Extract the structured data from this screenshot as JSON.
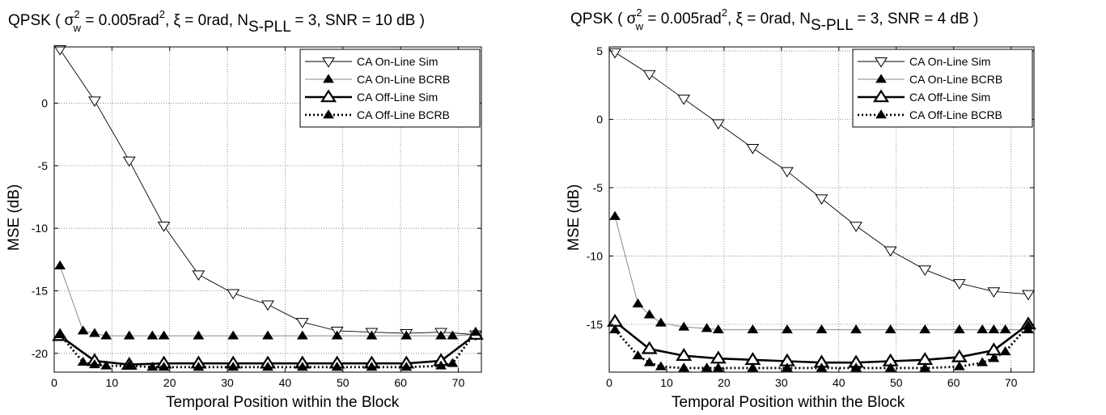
{
  "chart_data": [
    {
      "type": "line",
      "title": {
        "pre": "QPSK ( σ",
        "sup1": "2",
        "sub1": "w",
        "mid": " = 0.005rad",
        "sup2": "2",
        "mid2": ", ξ = 0rad, N",
        "sub2": "S-PLL",
        "post": " = 3, SNR = 10 dB )"
      },
      "xlabel": "Temporal Position within the Block",
      "ylabel": "MSE (dB)",
      "xlim": [
        0,
        74
      ],
      "ylim": [
        -21.5,
        4.5
      ],
      "xticks": [
        0,
        10,
        20,
        30,
        40,
        50,
        60,
        70
      ],
      "yticks": [
        0,
        -5,
        -10,
        -15,
        -20
      ],
      "grid": true,
      "legend_position": "top-right",
      "x": [
        1,
        5,
        7,
        9,
        13,
        17,
        19,
        25,
        31,
        37,
        43,
        49,
        55,
        61,
        67,
        69,
        73
      ],
      "series": [
        {
          "name": "CA On-Line Sim",
          "marker": "triangle-down-open",
          "line": "thin",
          "values": [
            4.3,
            null,
            0.2,
            null,
            -4.6,
            null,
            -9.8,
            -13.7,
            -15.2,
            -16.1,
            -17.5,
            -18.2,
            -18.3,
            -18.4,
            -18.3,
            null,
            -18.5
          ]
        },
        {
          "name": "CA On-Line BCRB",
          "marker": "triangle-up-filled",
          "line": "thin-gray",
          "values": [
            -13.0,
            -18.2,
            -18.4,
            -18.6,
            -18.6,
            -18.6,
            -18.6,
            -18.6,
            -18.6,
            -18.6,
            -18.6,
            -18.6,
            -18.6,
            -18.6,
            -18.6,
            -18.6,
            -18.5
          ]
        },
        {
          "name": "CA Off-Line Sim",
          "marker": "triangle-up-open",
          "line": "thick",
          "values": [
            -18.6,
            null,
            -20.6,
            null,
            -20.9,
            null,
            -20.8,
            -20.8,
            -20.8,
            -20.8,
            -20.8,
            -20.8,
            -20.8,
            -20.8,
            -20.6,
            null,
            -18.5
          ]
        },
        {
          "name": "CA Off-Line BCRB",
          "marker": "triangle-up-filled",
          "line": "dotted",
          "values": [
            -18.5,
            -20.7,
            -20.9,
            -21.0,
            -21.0,
            -21.1,
            -21.1,
            -21.1,
            -21.1,
            -21.1,
            -21.1,
            -21.1,
            -21.1,
            -21.1,
            -21.0,
            -20.8,
            -18.3
          ]
        }
      ]
    },
    {
      "type": "line",
      "title": {
        "pre": "QPSK ( σ",
        "sup1": "2",
        "sub1": "w",
        "mid": " = 0.005rad",
        "sup2": "2",
        "mid2": ", ξ = 0rad, N",
        "sub2": "S-PLL",
        "post": " = 3, SNR = 4 dB )"
      },
      "xlabel": "Temporal Position within the Block",
      "ylabel": "MSE (dB)",
      "xlim": [
        0,
        74
      ],
      "ylim": [
        -18.5,
        5.3
      ],
      "xticks": [
        0,
        10,
        20,
        30,
        40,
        50,
        60,
        70
      ],
      "yticks": [
        5,
        0,
        -5,
        -10,
        -15
      ],
      "grid": true,
      "legend_position": "top-right",
      "x": [
        1,
        5,
        7,
        9,
        13,
        17,
        19,
        25,
        31,
        37,
        43,
        49,
        55,
        61,
        65,
        67,
        69,
        73
      ],
      "series": [
        {
          "name": "CA On-Line Sim",
          "marker": "triangle-down-open",
          "line": "thin",
          "values": [
            4.9,
            null,
            3.3,
            null,
            1.5,
            null,
            -0.3,
            -2.1,
            -3.8,
            -5.8,
            -7.8,
            -9.6,
            -11.0,
            -12.0,
            null,
            -12.6,
            null,
            -12.8
          ]
        },
        {
          "name": "CA On-Line BCRB",
          "marker": "triangle-up-filled",
          "line": "thin-gray",
          "values": [
            -7.1,
            -13.5,
            -14.3,
            -14.9,
            -15.2,
            -15.3,
            -15.4,
            -15.4,
            -15.4,
            -15.4,
            -15.4,
            -15.4,
            -15.4,
            -15.4,
            -15.4,
            -15.4,
            -15.4,
            -15.4
          ]
        },
        {
          "name": "CA Off-Line Sim",
          "marker": "triangle-up-open",
          "line": "thick",
          "values": [
            -14.8,
            null,
            -16.8,
            null,
            -17.3,
            null,
            -17.5,
            -17.6,
            -17.7,
            -17.8,
            -17.8,
            -17.7,
            -17.6,
            -17.4,
            null,
            -16.9,
            null,
            -15.0
          ]
        },
        {
          "name": "CA Off-Line BCRB",
          "marker": "triangle-up-filled",
          "line": "dotted",
          "values": [
            -15.4,
            -17.3,
            -17.8,
            -18.1,
            -18.2,
            -18.2,
            -18.2,
            -18.2,
            -18.2,
            -18.2,
            -18.2,
            -18.2,
            -18.2,
            -18.1,
            -17.8,
            -17.5,
            -17.0,
            -15.1
          ]
        }
      ]
    }
  ]
}
